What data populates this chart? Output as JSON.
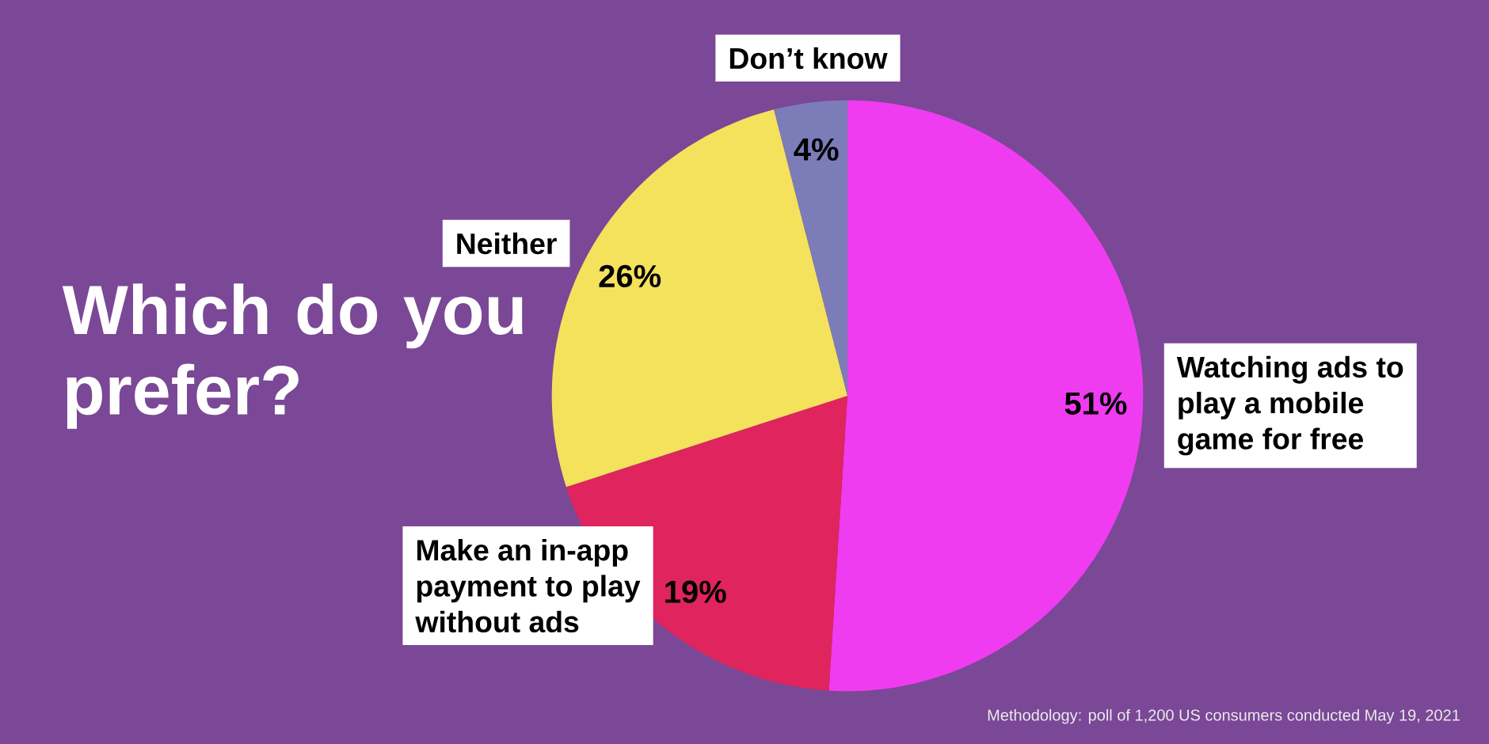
{
  "chart_data": {
    "type": "pie",
    "title": "Which do you prefer?",
    "categories": [
      "Watching ads to play a mobile game for free",
      "Make an in-app payment to play without ads",
      "Neither",
      "Don’t know"
    ],
    "values": [
      51,
      19,
      26,
      4
    ],
    "value_labels": [
      "51%",
      "19%",
      "26%",
      "4%"
    ],
    "colors": [
      "#f03cf0",
      "#e0245e",
      "#f4e15c",
      "#7b7cb8"
    ],
    "annotations": [
      "Methodology: poll of 1,200 US consumers conducted May 19, 2021"
    ]
  }
}
